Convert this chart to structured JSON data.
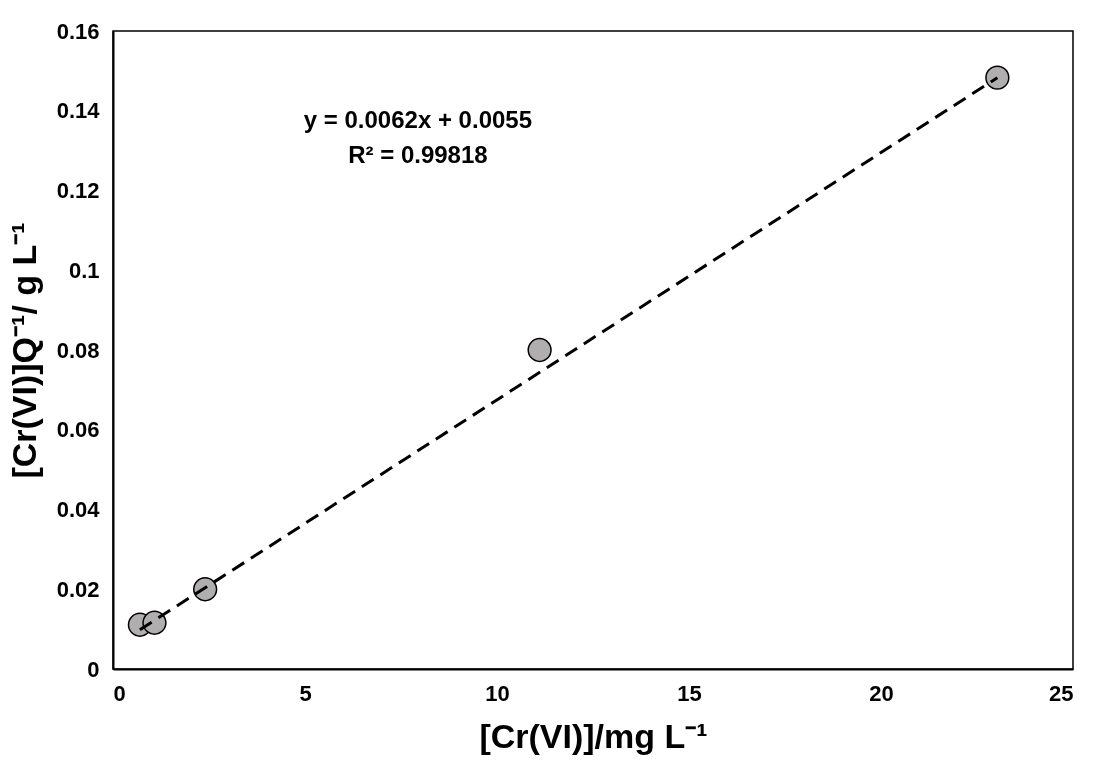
{
  "chart_data": {
    "type": "scatter",
    "xlabel": "[Cr(VI)]/mg L⁻¹",
    "ylabel": "[Cr(VI)]Q⁻¹/ g L⁻¹",
    "x": [
      0.7,
      1.08,
      2.4,
      11.11,
      23.03
    ],
    "series": [
      {
        "color": "#b0aeae",
        "marker": "circle",
        "values": [
          0.0111,
          0.0116,
          0.02,
          0.08,
          0.1483
        ]
      },
      {
        "type": "line",
        "color": "#000000",
        "line_style": "dashed",
        "marker": "none",
        "x": [
          0.7,
          23.03
        ],
        "values": [
          0.00984,
          0.1483
        ]
      }
    ],
    "annotations": [
      "y = 0.0062x + 0.0055",
      "R² = 0.99818"
    ],
    "xlim": [
      0,
      25
    ],
    "xticks": [
      0,
      5,
      10,
      15,
      20,
      25
    ],
    "ylim": [
      0,
      0.16
    ],
    "yticks": [
      0,
      0.02,
      0.04,
      0.06,
      0.08,
      0.1,
      0.12,
      0.14,
      0.16
    ],
    "grid": false
  }
}
